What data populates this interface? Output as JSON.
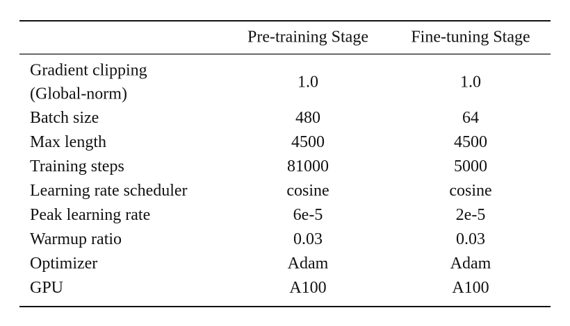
{
  "table": {
    "columns": [
      "Pre-training Stage",
      "Fine-tuning Stage"
    ],
    "rows": [
      {
        "label": [
          "Gradient clipping",
          "(Global-norm)"
        ],
        "values": [
          "1.0",
          "1.0"
        ]
      },
      {
        "label": [
          "Batch size"
        ],
        "values": [
          "480",
          "64"
        ]
      },
      {
        "label": [
          "Max length"
        ],
        "values": [
          "4500",
          "4500"
        ]
      },
      {
        "label": [
          "Training steps"
        ],
        "values": [
          "81000",
          "5000"
        ]
      },
      {
        "label": [
          "Learning rate scheduler"
        ],
        "values": [
          "cosine",
          "cosine"
        ]
      },
      {
        "label": [
          "Peak learning rate"
        ],
        "values": [
          "6e-5",
          "2e-5"
        ]
      },
      {
        "label": [
          "Warmup ratio"
        ],
        "values": [
          "0.03",
          "0.03"
        ]
      },
      {
        "label": [
          "Optimizer"
        ],
        "values": [
          "Adam",
          "Adam"
        ]
      },
      {
        "label": [
          "GPU"
        ],
        "values": [
          "A100",
          "A100"
        ]
      }
    ]
  }
}
